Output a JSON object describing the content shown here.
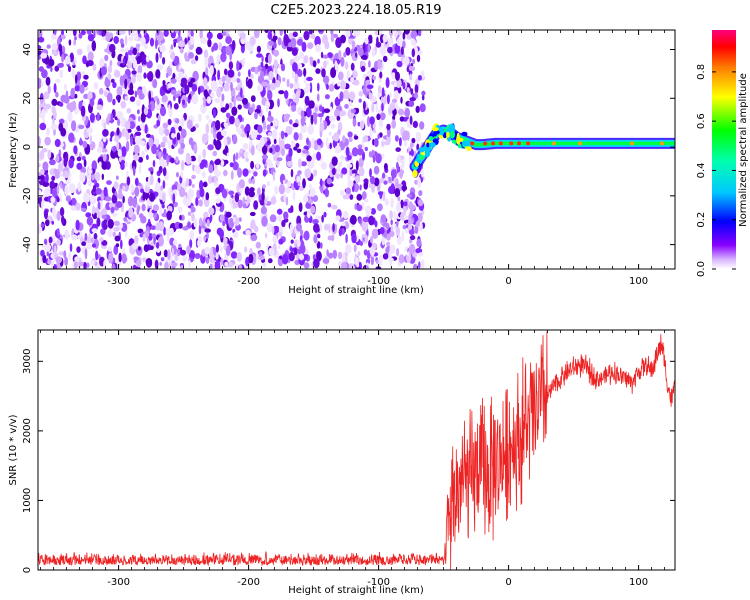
{
  "title": "C2E5.2023.224.18.05.R19",
  "chart_data": [
    {
      "type": "heatmap",
      "xlabel": "Height of straight line (km)",
      "ylabel": "Frequency (Hz)",
      "xlim": [
        -362,
        128
      ],
      "ylim": [
        -50,
        48
      ],
      "xticks": [
        -300,
        -200,
        -100,
        0,
        100
      ],
      "yticks": [
        -40,
        -20,
        0,
        20,
        40
      ],
      "noise_region_x": [
        -362,
        -70
      ],
      "colorbar": {
        "label": "Normalized spectral amplitude",
        "range": [
          0,
          0.97
        ],
        "ticks": [
          0.0,
          0.2,
          0.4,
          0.6,
          0.8
        ],
        "colors": [
          "#ffffff",
          "#d8b4ff",
          "#8800ff",
          "#0000ff",
          "#00e5ff",
          "#00ff00",
          "#ffff00",
          "#ff8000",
          "#ff0000",
          "#ff0080"
        ]
      },
      "signal_track": [
        {
          "x": -72,
          "y": -8
        },
        {
          "x": -66,
          "y": -3
        },
        {
          "x": -60,
          "y": 2
        },
        {
          "x": -55,
          "y": 6
        },
        {
          "x": -50,
          "y": 7
        },
        {
          "x": -45,
          "y": 6
        },
        {
          "x": -40,
          "y": 4
        },
        {
          "x": -35,
          "y": 3
        },
        {
          "x": -30,
          "y": 2
        },
        {
          "x": -25,
          "y": 1
        },
        {
          "x": -20,
          "y": 1
        },
        {
          "x": -10,
          "y": 1.5
        },
        {
          "x": 0,
          "y": 1.5
        },
        {
          "x": 20,
          "y": 1.5
        },
        {
          "x": 60,
          "y": 1.5
        },
        {
          "x": 100,
          "y": 1.5
        },
        {
          "x": 128,
          "y": 1.5
        }
      ]
    },
    {
      "type": "line",
      "xlabel": "Height of straight line (km)",
      "ylabel": "SNR (10 * v/v)",
      "xlim": [
        -362,
        128
      ],
      "ylim": [
        0,
        3450
      ],
      "xticks": [
        -300,
        -200,
        -100,
        0,
        100
      ],
      "yticks": [
        0,
        1000,
        2000,
        3000
      ],
      "color": "#ee2222",
      "series": [
        {
          "name": "SNR",
          "x": [
            -362,
            -300,
            -250,
            -200,
            -150,
            -100,
            -60,
            -50,
            -47,
            -44,
            -40,
            -35,
            -30,
            -25,
            -20,
            -15,
            -10,
            -5,
            0,
            5,
            10,
            15,
            20,
            25,
            30,
            35,
            40,
            45,
            50,
            55,
            60,
            65,
            70,
            75,
            80,
            85,
            90,
            95,
            100,
            105,
            110,
            115,
            118,
            122,
            125,
            128
          ],
          "values": [
            130,
            125,
            120,
            135,
            130,
            140,
            140,
            150,
            450,
            900,
            1100,
            1300,
            1250,
            1400,
            1450,
            1350,
            1500,
            1650,
            1750,
            1850,
            1950,
            2100,
            2250,
            2400,
            2500,
            2650,
            2750,
            2850,
            2900,
            2950,
            2900,
            2800,
            2750,
            2800,
            2850,
            2800,
            2750,
            2700,
            2850,
            2950,
            2850,
            3150,
            3250,
            2700,
            2450,
            2650
          ]
        }
      ]
    }
  ]
}
